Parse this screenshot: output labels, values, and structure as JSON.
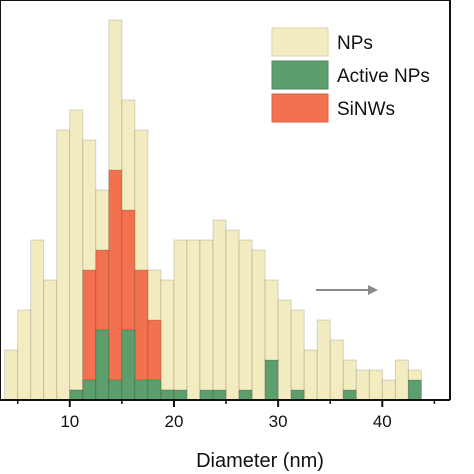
{
  "chart_data": {
    "type": "bar",
    "xlabel": "Diameter (nm)",
    "ylabel": "",
    "xlim": [
      3.3,
      46.5
    ],
    "bin_width": 1.25,
    "grid": false,
    "legend_placement": "top-right",
    "x_ticks": [
      10,
      20,
      30,
      40
    ],
    "x_tick_labels": [
      "10",
      "20",
      "30",
      "40"
    ],
    "annotation": "arrow pointing right",
    "series": [
      {
        "name": "NPs",
        "color": "#f3ecc0",
        "bins": [
          [
            3.75,
            5
          ],
          [
            5,
            9
          ],
          [
            6.25,
            16
          ],
          [
            7.5,
            12
          ],
          [
            8.75,
            27
          ],
          [
            10,
            29
          ],
          [
            11.25,
            26
          ],
          [
            12.5,
            21
          ],
          [
            13.75,
            38
          ],
          [
            15,
            30
          ],
          [
            16.25,
            27
          ],
          [
            17.5,
            13
          ],
          [
            18.75,
            12
          ],
          [
            20,
            16
          ],
          [
            21.25,
            16
          ],
          [
            22.5,
            16
          ],
          [
            23.75,
            18
          ],
          [
            25,
            17
          ],
          [
            26.25,
            16
          ],
          [
            27.5,
            15
          ],
          [
            28.75,
            12
          ],
          [
            30,
            10
          ],
          [
            31.25,
            9
          ],
          [
            32.5,
            5
          ],
          [
            33.75,
            8
          ],
          [
            35,
            6
          ],
          [
            36.25,
            4
          ],
          [
            37.5,
            3
          ],
          [
            38.75,
            3
          ],
          [
            40,
            2
          ],
          [
            41.25,
            4
          ],
          [
            42.5,
            3
          ]
        ]
      },
      {
        "name": "SiNWs",
        "color": "#f2714e",
        "bins": [
          [
            10,
            1
          ],
          [
            11.25,
            13
          ],
          [
            12.5,
            15
          ],
          [
            13.75,
            23
          ],
          [
            15,
            19
          ],
          [
            16.25,
            13
          ],
          [
            17.5,
            8
          ],
          [
            18.75,
            1
          ]
        ]
      },
      {
        "name": "Active NPs",
        "color": "#5c9e6c",
        "bins": [
          [
            10,
            1
          ],
          [
            11.25,
            2
          ],
          [
            12.5,
            7
          ],
          [
            13.75,
            2
          ],
          [
            15,
            7
          ],
          [
            16.25,
            2
          ],
          [
            17.5,
            2
          ],
          [
            18.75,
            1
          ],
          [
            20,
            1
          ],
          [
            22.5,
            1
          ],
          [
            23.75,
            1
          ],
          [
            26.25,
            1
          ],
          [
            28.75,
            4
          ],
          [
            31.25,
            1
          ],
          [
            36.25,
            1
          ],
          [
            42.5,
            2
          ]
        ]
      }
    ],
    "legend_order": [
      "NPs",
      "Active NPs",
      "SiNWs"
    ]
  }
}
